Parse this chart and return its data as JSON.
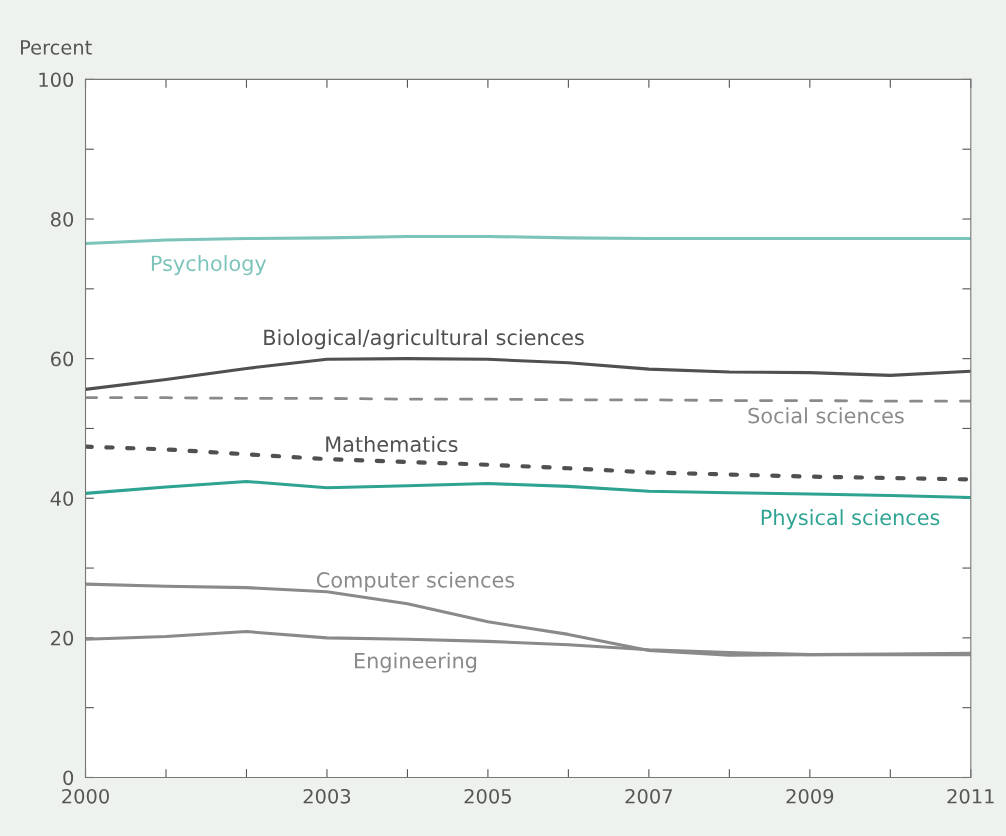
{
  "chart_data": {
    "type": "line",
    "ylabel": "Percent",
    "x": [
      2000,
      2001,
      2002,
      2003,
      2004,
      2005,
      2006,
      2007,
      2008,
      2009,
      2010,
      2011
    ],
    "series": [
      {
        "name": "Psychology",
        "color": "#7cc4ba",
        "line_style": "solid",
        "values": [
          76.5,
          77,
          77.2,
          77.3,
          77.5,
          77.5,
          77.3,
          77.2,
          77.2,
          77.2,
          77.2,
          77.2
        ]
      },
      {
        "name": "Biological/agricultural sciences",
        "color": "#505050",
        "line_style": "solid",
        "values": [
          55.6,
          57,
          58.6,
          59.9,
          60,
          59.9,
          59.4,
          58.5,
          58.1,
          58,
          57.6,
          58.2
        ]
      },
      {
        "name": "Social sciences",
        "color": "#8a8a8a",
        "line_style": "dashed",
        "values": [
          54.4,
          54.4,
          54.3,
          54.3,
          54.2,
          54.2,
          54.1,
          54.1,
          54,
          54,
          53.9,
          53.9
        ]
      },
      {
        "name": "Mathematics",
        "color": "#505050",
        "line_style": "dotted",
        "values": [
          47.4,
          47,
          46.3,
          45.6,
          45.2,
          44.8,
          44.3,
          43.7,
          43.4,
          43.1,
          42.9,
          42.7
        ]
      },
      {
        "name": "Physical sciences",
        "color": "#2fa392",
        "line_style": "solid",
        "values": [
          40.7,
          41.6,
          42.4,
          41.5,
          41.8,
          42.1,
          41.7,
          41,
          40.8,
          40.6,
          40.4,
          40.1
        ]
      },
      {
        "name": "Computer sciences",
        "color": "#8a8a8a",
        "line_style": "solid",
        "values": [
          27.7,
          27.4,
          27.2,
          26.6,
          24.9,
          22.3,
          20.5,
          18.2,
          17.5,
          17.6,
          17.7,
          17.8
        ]
      },
      {
        "name": "Engineering",
        "color": "#8a8a8a",
        "line_style": "solid",
        "values": [
          19.8,
          20.2,
          20.9,
          20,
          19.8,
          19.5,
          19,
          18.3,
          17.9,
          17.6,
          17.6,
          17.6
        ]
      }
    ],
    "xlim": [
      2000,
      2011
    ],
    "xticks": [
      2000,
      {
        "value": 2001,
        "label": null
      },
      {
        "value": 2002,
        "label": null
      },
      2003,
      {
        "value": 2004,
        "label": null
      },
      2005,
      {
        "value": 2006,
        "label": null
      },
      2007,
      {
        "value": 2008,
        "label": null
      },
      2009,
      {
        "value": 2010,
        "label": null
      },
      2011
    ],
    "ylim": [
      0,
      100
    ],
    "yticks": [
      0,
      {
        "value": 10,
        "label": null
      },
      20,
      {
        "value": 30,
        "label": null
      },
      40,
      {
        "value": 50,
        "label": null
      },
      60,
      {
        "value": 70,
        "label": null
      },
      80,
      {
        "value": 90,
        "label": null
      },
      100
    ],
    "grid": false,
    "legend": false,
    "marker": "none"
  }
}
